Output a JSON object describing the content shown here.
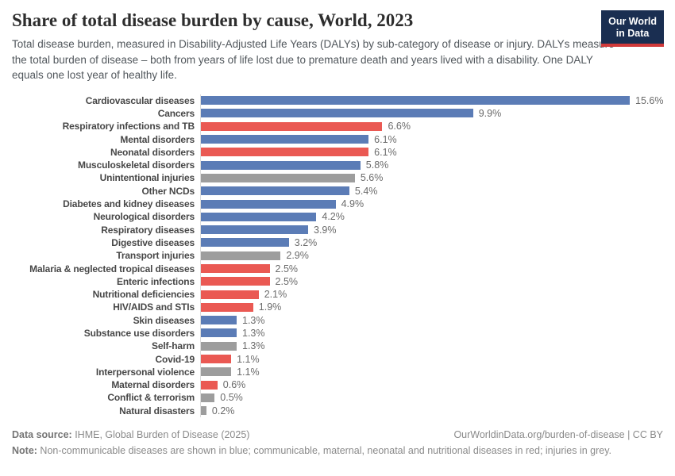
{
  "header": {
    "title": "Share of total disease burden by cause, World, 2023",
    "subtitle": "Total disease burden, measured in Disability-Adjusted Life Years (DALYs) by sub-category of disease or injury. DALYs measure the total burden of disease – both from years of life lost due to premature death and years lived with a disability. One DALY equals one lost year of healthy life.",
    "logo": {
      "line1": "Our World",
      "line2": "in Data",
      "bg": "#1a2e51",
      "stripe": "#d13a3a"
    }
  },
  "chart_data": {
    "type": "bar",
    "orientation": "horizontal",
    "title": "Share of total disease burden by cause, World, 2023",
    "unit": "%",
    "xlim": [
      0,
      15.6
    ],
    "grid": false,
    "legend_position": "none",
    "categories": [
      "Cardiovascular diseases",
      "Cancers",
      "Respiratory infections and TB",
      "Mental disorders",
      "Neonatal disorders",
      "Musculoskeletal disorders",
      "Unintentional injuries",
      "Other NCDs",
      "Diabetes and kidney diseases",
      "Neurological disorders",
      "Respiratory diseases",
      "Digestive diseases",
      "Transport injuries",
      "Malaria & neglected tropical diseases",
      "Enteric infections",
      "Nutritional deficiencies",
      "HIV/AIDS and STIs",
      "Skin diseases",
      "Substance use disorders",
      "Self-harm",
      "Covid-19",
      "Interpersonal violence",
      "Maternal disorders",
      "Conflict & terrorism",
      "Natural disasters"
    ],
    "values": [
      15.6,
      9.9,
      6.6,
      6.1,
      6.1,
      5.8,
      5.6,
      5.4,
      4.9,
      4.2,
      3.9,
      3.2,
      2.9,
      2.5,
      2.5,
      2.1,
      1.9,
      1.3,
      1.3,
      1.3,
      1.1,
      1.1,
      0.6,
      0.5,
      0.2
    ],
    "value_labels": [
      "15.6%",
      "9.9%",
      "6.6%",
      "6.1%",
      "6.1%",
      "5.8%",
      "5.6%",
      "5.4%",
      "4.9%",
      "4.2%",
      "3.9%",
      "3.2%",
      "2.9%",
      "2.5%",
      "2.5%",
      "2.1%",
      "1.9%",
      "1.3%",
      "1.3%",
      "1.3%",
      "1.1%",
      "1.1%",
      "0.6%",
      "0.5%",
      "0.2%"
    ],
    "bar_color_keys": [
      "blue",
      "blue",
      "red",
      "blue",
      "red",
      "blue",
      "grey",
      "blue",
      "blue",
      "blue",
      "blue",
      "blue",
      "grey",
      "red",
      "red",
      "red",
      "red",
      "blue",
      "blue",
      "grey",
      "red",
      "grey",
      "red",
      "grey",
      "grey"
    ],
    "palette": {
      "blue": "#5b7cb6",
      "red": "#ea5953",
      "grey": "#9d9d9d"
    },
    "color_legend": {
      "blue": "Non-communicable diseases",
      "red": "Communicable, maternal, neonatal and nutritional diseases",
      "grey": "Injuries"
    }
  },
  "footer": {
    "source_label": "Data source:",
    "source_text": " IHME, Global Burden of Disease (2025)",
    "link": "OurWorldinData.org/burden-of-disease | CC BY",
    "note_label": "Note:",
    "note_text": " Non-communicable diseases are shown in blue; communicable, maternal, neonatal and nutritional diseases in red; injuries in grey."
  }
}
